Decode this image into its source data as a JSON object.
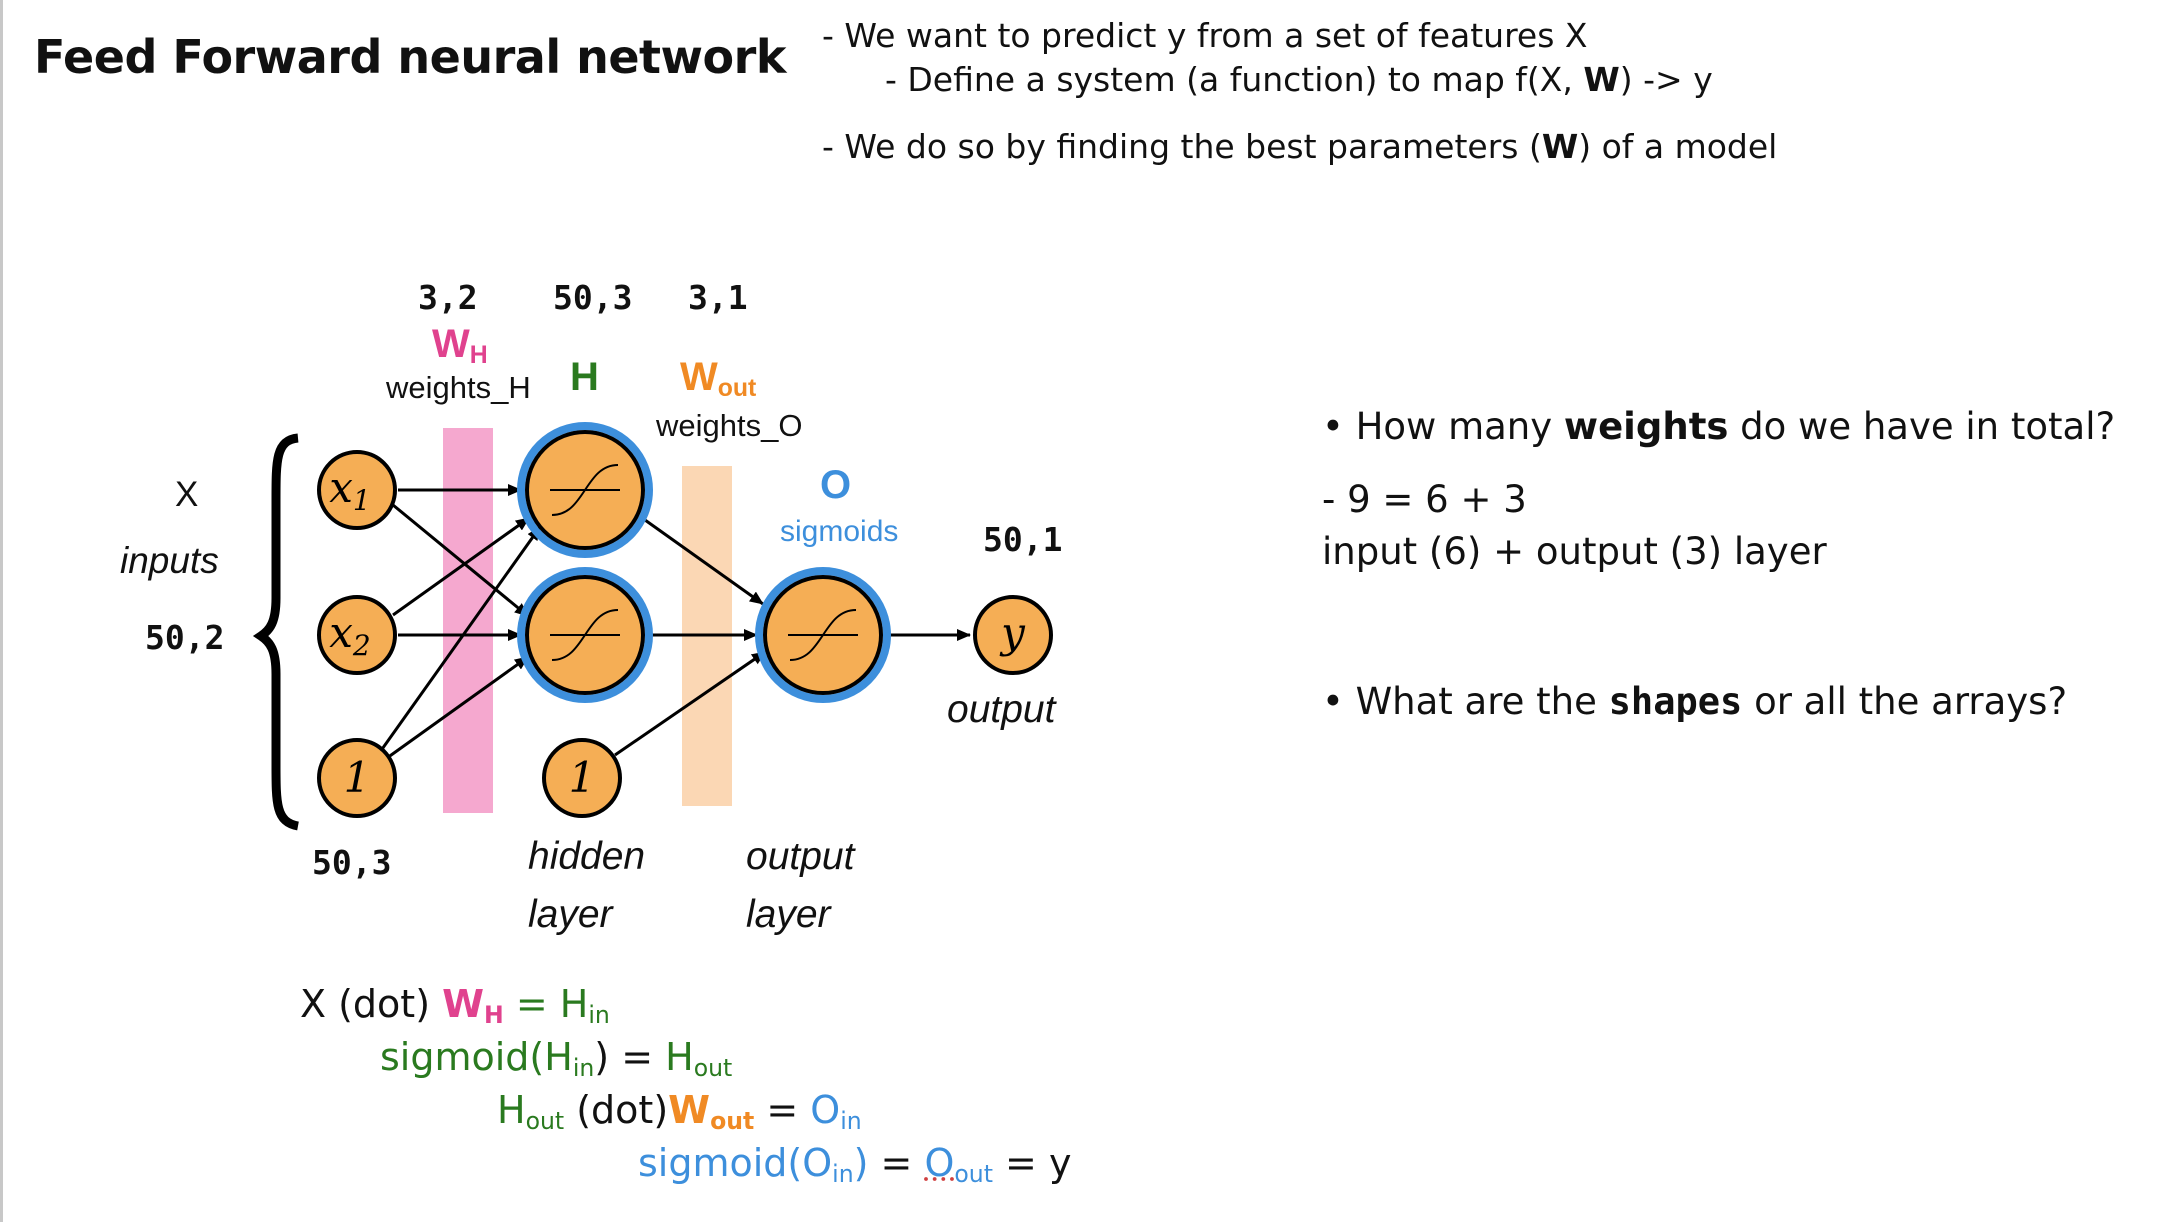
{
  "title": "Feed Forward neural network",
  "intro": {
    "line1": "- We want to predict y from a set of features X",
    "line2_prefix": "- Define a system (a function) to map f(X, ",
    "line2_bold": "W",
    "line2_suffix": ") -> y",
    "line3_prefix": "- We do so by finding the best parameters (",
    "line3_bold": "W",
    "line3_suffix": ") of a model"
  },
  "diagram": {
    "shape_wh": "3,2",
    "shape_h": "50,3",
    "shape_wout": "3,1",
    "wh_main": "W",
    "wh_sub": "H",
    "wh_caption": "weights_H",
    "h_label": "H",
    "wout_main": "W",
    "wout_sub": "out",
    "wout_caption": "weights_O",
    "o_label": "O",
    "sigmoids_label": "sigmoids",
    "x_label": "X",
    "inputs_label": "inputs",
    "shape_x": "50,2",
    "shape_x_bias": "50,3",
    "shape_y": "50,1",
    "node_x1_main": "x",
    "node_x1_sub": "1",
    "node_x2_main": "x",
    "node_x2_sub": "2",
    "node_bias": "1",
    "node_y": "y",
    "output_label": "output",
    "hidden_label_1": "hidden",
    "hidden_label_2": "layer",
    "output_layer_label_1": "output",
    "output_layer_label_2": "layer",
    "colors": {
      "node_fill": "#f5ae55",
      "node_ring": "#3d8fdc",
      "band_pink": "#f5a8cf",
      "band_peach": "#fbd7b4"
    }
  },
  "right": {
    "q1_prefix": "• How many ",
    "q1_bold": "weights",
    "q1_suffix": " do we have in total?",
    "a1_line1": "- 9 = 6 + 3",
    "a1_line2": "input (6) +  output (3) layer",
    "q2_prefix": "• What are the ",
    "q2_bold": "shapes",
    "q2_suffix": " or all the arrays?"
  },
  "equations": {
    "eq1_a": "X (dot) ",
    "eq1_w": "W",
    "eq1_wsub": "H",
    "eq1_b": "  = H",
    "eq1_bsub": "in",
    "eq2_a": "sigmoid(H",
    "eq2_asub": "in",
    "eq2_b": ") = ",
    "eq2_c": " H",
    "eq2_csub": "out",
    "eq3_a": "H",
    "eq3_asub": "out",
    "eq3_b": " (dot)",
    "eq3_w": "W",
    "eq3_wsub": "out",
    "eq3_c": "  =  ",
    "eq3_d": " O",
    "eq3_dsub": "in",
    "eq4_a": "sigmoid(O",
    "eq4_asub": "in",
    "eq4_b": ")",
    "eq4_c": " = ",
    "eq4_d": "O",
    "eq4_dsub": "out",
    "eq4_e": " = y"
  }
}
